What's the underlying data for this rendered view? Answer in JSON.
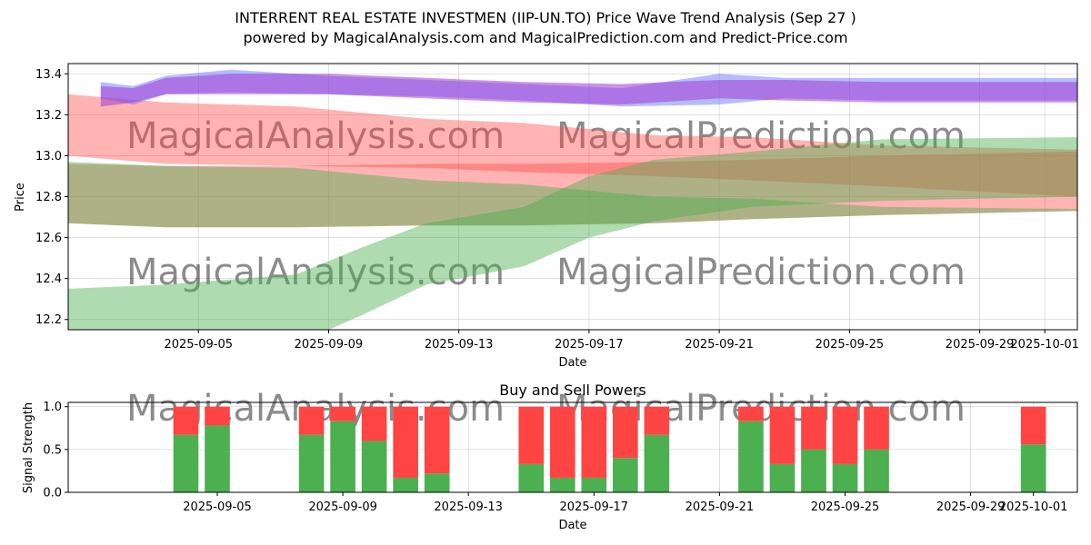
{
  "title_line1": "INTERRENT REAL ESTATE INVESTMEN (IIP-UN.TO) Price Wave Trend Analysis (Sep 27 )",
  "title_line2": "powered by MagicalAnalysis.com and MagicalPrediction.com and Predict-Price.com",
  "watermark_left": "MagicalAnalysis.com",
  "watermark_right": "MagicalPrediction.com",
  "chart_data": [
    {
      "type": "area",
      "title": "INTERRENT REAL ESTATE INVESTMEN (IIP-UN.TO) Price Wave Trend Analysis (Sep 27 )",
      "xlabel": "Date",
      "ylabel": "Price",
      "xlim": [
        "2025-09-01",
        "2025-10-02"
      ],
      "ylim": [
        12.15,
        13.45
      ],
      "x_ticks": [
        "2025-09-05",
        "2025-09-09",
        "2025-09-13",
        "2025-09-17",
        "2025-09-21",
        "2025-09-25",
        "2025-09-29",
        "2025-10-01"
      ],
      "y_ticks": [
        12.2,
        12.4,
        12.6,
        12.8,
        13.0,
        13.2,
        13.4
      ],
      "grid": true,
      "bands": [
        {
          "name": "red-upper-band",
          "color": "#ff4040",
          "opacity": 0.4,
          "x": [
            "2025-09-01",
            "2025-09-04",
            "2025-09-08",
            "2025-09-12",
            "2025-09-15",
            "2025-09-19",
            "2025-09-22",
            "2025-09-26",
            "2025-10-02"
          ],
          "upper": [
            13.3,
            13.26,
            13.24,
            13.18,
            13.16,
            13.1,
            13.09,
            13.05,
            13.03
          ],
          "lower": [
            13.0,
            12.96,
            12.95,
            12.94,
            12.92,
            12.9,
            12.88,
            12.85,
            12.8
          ]
        },
        {
          "name": "red-lower-band",
          "color": "#ff4040",
          "opacity": 0.4,
          "x": [
            "2025-09-01",
            "2025-09-04",
            "2025-09-08",
            "2025-09-12",
            "2025-09-15",
            "2025-09-19",
            "2025-09-22",
            "2025-09-26",
            "2025-10-02"
          ],
          "upper": [
            12.96,
            12.95,
            12.95,
            12.96,
            12.96,
            12.97,
            12.98,
            13.0,
            13.02
          ],
          "lower": [
            12.67,
            12.65,
            12.65,
            12.66,
            12.66,
            12.67,
            12.69,
            12.71,
            12.73
          ]
        },
        {
          "name": "green-upper-band",
          "color": "#4caf50",
          "opacity": 0.45,
          "x": [
            "2025-09-01",
            "2025-09-04",
            "2025-09-08",
            "2025-09-12",
            "2025-09-15",
            "2025-09-19",
            "2025-09-22",
            "2025-09-26",
            "2025-10-02"
          ],
          "upper": [
            12.97,
            12.95,
            12.94,
            12.88,
            12.86,
            12.8,
            12.79,
            12.75,
            12.74
          ],
          "lower": [
            12.67,
            12.65,
            12.65,
            12.66,
            12.66,
            12.67,
            12.69,
            12.71,
            12.73
          ]
        },
        {
          "name": "green-lower-band",
          "color": "#4caf50",
          "opacity": 0.45,
          "x": [
            "2025-09-01",
            "2025-09-04",
            "2025-09-08",
            "2025-09-10",
            "2025-09-12",
            "2025-09-15",
            "2025-09-17",
            "2025-09-19",
            "2025-09-22",
            "2025-09-26",
            "2025-10-02"
          ],
          "upper": [
            12.35,
            12.37,
            12.42,
            12.55,
            12.67,
            12.75,
            12.9,
            12.98,
            13.02,
            13.08,
            13.09
          ],
          "lower": [
            12.05,
            12.05,
            12.08,
            12.22,
            12.37,
            12.46,
            12.6,
            12.68,
            12.75,
            12.78,
            12.8
          ]
        },
        {
          "name": "blue-band",
          "color": "#5a6cff",
          "opacity": 0.45,
          "x": [
            "2025-09-02",
            "2025-09-03",
            "2025-09-04",
            "2025-09-06",
            "2025-09-09",
            "2025-09-12",
            "2025-09-15",
            "2025-09-18",
            "2025-09-21",
            "2025-09-23",
            "2025-09-26",
            "2025-10-02"
          ],
          "upper": [
            13.36,
            13.34,
            13.39,
            13.42,
            13.39,
            13.37,
            13.35,
            13.33,
            13.4,
            13.38,
            13.38,
            13.38
          ],
          "lower": [
            13.28,
            13.25,
            13.3,
            13.31,
            13.3,
            13.29,
            13.27,
            13.24,
            13.25,
            13.28,
            13.27,
            13.27
          ]
        },
        {
          "name": "purple-band",
          "color": "#a33ad0",
          "opacity": 0.55,
          "x": [
            "2025-09-02",
            "2025-09-03",
            "2025-09-04",
            "2025-09-06",
            "2025-09-09",
            "2025-09-12",
            "2025-09-15",
            "2025-09-18",
            "2025-09-21",
            "2025-09-23",
            "2025-09-26",
            "2025-10-02"
          ],
          "upper": [
            13.34,
            13.33,
            13.38,
            13.4,
            13.4,
            13.38,
            13.36,
            13.35,
            13.37,
            13.37,
            13.36,
            13.36
          ],
          "lower": [
            13.24,
            13.26,
            13.3,
            13.3,
            13.3,
            13.28,
            13.26,
            13.25,
            13.28,
            13.27,
            13.26,
            13.26
          ]
        }
      ]
    },
    {
      "type": "bar",
      "title": "Buy and Sell Powers",
      "xlabel": "Date",
      "ylabel": "Signal Strength",
      "ylim": [
        0,
        1.05
      ],
      "y_ticks": [
        0.0,
        0.5,
        1.0
      ],
      "x_ticks": [
        "2025-09-05",
        "2025-09-09",
        "2025-09-13",
        "2025-09-17",
        "2025-09-21",
        "2025-09-25",
        "2025-09-29",
        "2025-10-01"
      ],
      "categories": [
        "2025-09-04",
        "2025-09-05",
        "2025-09-08",
        "2025-09-09",
        "2025-09-10",
        "2025-09-11",
        "2025-09-12",
        "2025-09-15",
        "2025-09-16",
        "2025-09-17",
        "2025-09-18",
        "2025-09-19",
        "2025-09-22",
        "2025-09-23",
        "2025-09-24",
        "2025-09-25",
        "2025-09-26",
        "2025-10-01"
      ],
      "series": [
        {
          "name": "Buy",
          "color": "#4caf50",
          "values": [
            0.67,
            0.78,
            0.67,
            0.83,
            0.6,
            0.17,
            0.22,
            0.33,
            0.17,
            0.17,
            0.4,
            0.67,
            0.83,
            0.33,
            0.5,
            0.33,
            0.5,
            0.56
          ]
        },
        {
          "name": "Sell",
          "color": "#ff4444",
          "values": [
            0.33,
            0.22,
            0.33,
            0.17,
            0.4,
            0.83,
            0.78,
            0.67,
            0.83,
            0.83,
            0.6,
            0.33,
            0.17,
            0.67,
            0.5,
            0.67,
            0.5,
            0.44
          ]
        }
      ]
    }
  ]
}
